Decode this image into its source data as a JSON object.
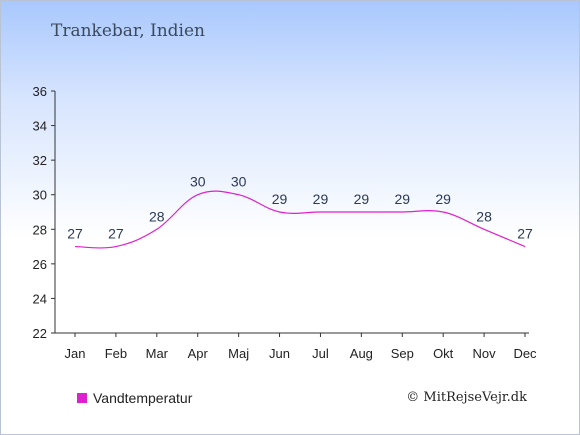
{
  "title": "Trankebar, Indien",
  "credit": "© MitRejseVejr.dk",
  "colors": {
    "series": "#e020d0",
    "axis": "#333333",
    "label": "#2b3a56"
  },
  "chart_data": {
    "type": "line",
    "categories": [
      "Jan",
      "Feb",
      "Mar",
      "Apr",
      "Maj",
      "Jun",
      "Jul",
      "Aug",
      "Sep",
      "Okt",
      "Nov",
      "Dec"
    ],
    "series": [
      {
        "name": "Vandtemperatur",
        "values": [
          27,
          27,
          28,
          30,
          30,
          29,
          29,
          29,
          29,
          29,
          28,
          27
        ]
      }
    ],
    "ylim": [
      22,
      36
    ],
    "yticks": [
      22,
      24,
      26,
      28,
      30,
      32,
      34,
      36
    ],
    "grid": false,
    "legend": "bottom-left"
  }
}
